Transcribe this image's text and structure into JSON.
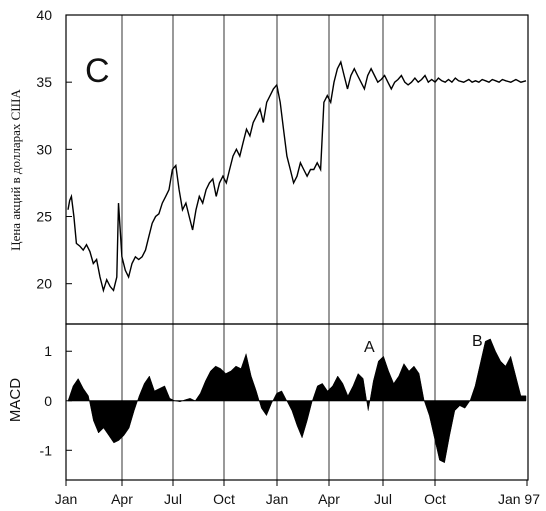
{
  "chart_data": [
    {
      "type": "line",
      "panel_label": "C",
      "ylabel": "Цена акций в долларах США",
      "ylim": [
        17,
        40
      ],
      "yticks": [
        "20",
        "25",
        "30",
        "35",
        "40"
      ],
      "x_start": "Jan",
      "x_end": "Jan 97",
      "series": [
        {
          "x": [
            0,
            0.1,
            0.2,
            0.35,
            0.5,
            0.7,
            0.9,
            1.1,
            1.3,
            1.5,
            1.7,
            1.9,
            2.1,
            2.3,
            2.5,
            2.7,
            2.9,
            3.0,
            3.2,
            3.4,
            3.6,
            3.8,
            4.0,
            4.2,
            4.4,
            4.6,
            4.8,
            5.0,
            5.2,
            5.4,
            5.6,
            5.8,
            6.0,
            6.2,
            6.4,
            6.6,
            6.8,
            7.0,
            7.2,
            7.4,
            7.6,
            7.8,
            8.0,
            8.2,
            8.4,
            8.6,
            8.8,
            9.0,
            9.2,
            9.4,
            9.6,
            9.8,
            10.0,
            10.2,
            10.4,
            10.6,
            10.8,
            11.0,
            11.2,
            11.4,
            11.6,
            11.8,
            12.0,
            12.2,
            12.4,
            12.6,
            12.8,
            13.0,
            13.2,
            13.4,
            13.6,
            13.8,
            14.0,
            14.2,
            14.4,
            14.6,
            14.8,
            15.0,
            15.2,
            15.4,
            15.6,
            15.8,
            16.0,
            16.2,
            16.4,
            16.6,
            16.8,
            17.0,
            17.2,
            17.4,
            17.6,
            17.8,
            18.0,
            18.2,
            18.4,
            18.6,
            18.8,
            19.0,
            19.2,
            19.4,
            19.6,
            19.8,
            20.0,
            20.2,
            20.4,
            20.6,
            20.8,
            21.0,
            21.2,
            21.4,
            21.6,
            21.8,
            22.0,
            22.2,
            22.4,
            22.6,
            22.8,
            23.0,
            23.2,
            23.5,
            23.8,
            24.0,
            24.2,
            24.4,
            24.6,
            24.8,
            25.0,
            25.2,
            25.4,
            25.6,
            25.8,
            26.0,
            26.3,
            26.6,
            26.9,
            27.2
          ],
          "values": [
            25.5,
            26.2,
            26.5,
            25.0,
            23.0,
            22.8,
            22.5,
            22.9,
            22.4,
            21.5,
            21.8,
            20.5,
            19.5,
            20.3,
            19.8,
            19.5,
            20.5,
            26.0,
            22.0,
            21.0,
            20.5,
            21.5,
            22.0,
            21.8,
            22.0,
            22.5,
            23.5,
            24.5,
            25.0,
            25.2,
            26.0,
            26.5,
            27.0,
            28.5,
            28.8,
            27.0,
            25.5,
            26.0,
            25.0,
            24.0,
            25.5,
            26.5,
            26.0,
            27.0,
            27.5,
            27.8,
            26.5,
            27.5,
            28.0,
            27.5,
            28.5,
            29.5,
            30.0,
            29.5,
            30.5,
            31.5,
            31.0,
            32.0,
            32.5,
            33.0,
            32.0,
            33.5,
            34.0,
            34.5,
            34.8,
            33.5,
            31.5,
            29.5,
            28.5,
            27.5,
            28.0,
            29.0,
            28.5,
            28.0,
            28.5,
            28.5,
            29.0,
            28.5,
            33.5,
            34.0,
            33.5,
            35.0,
            36.0,
            36.5,
            35.5,
            34.5,
            35.5,
            36.0,
            35.5,
            35.0,
            34.5,
            35.5,
            36.0,
            35.5,
            35.0,
            35.2,
            35.5,
            35.0,
            34.5,
            35.0,
            35.2,
            35.5,
            35.0,
            34.8,
            35.0,
            35.3,
            35.0,
            35.2,
            35.5,
            35.0,
            35.2,
            35.0,
            35.3,
            35.1,
            35.0,
            35.2,
            35.0,
            35.3,
            35.1,
            35.0,
            35.2,
            35.0,
            35.1,
            35.0,
            35.2,
            35.1,
            35.0,
            35.2,
            35.1,
            35.0,
            35.2,
            35.1,
            35.0,
            35.2,
            35.0,
            35.1
          ]
        }
      ]
    },
    {
      "type": "area",
      "ylabel": "MACD",
      "ylim": [
        -1.6,
        1.55
      ],
      "yticks": [
        "-1",
        "0",
        "1"
      ],
      "categories": [
        "Jan",
        "Apr",
        "Jul",
        "Oct",
        "Jan",
        "Apr",
        "Jul",
        "Oct",
        "Jan 97"
      ],
      "annotations": [
        "A",
        "B"
      ],
      "series": [
        {
          "x": [
            0,
            0.1,
            0.2,
            0.3,
            0.4,
            0.5,
            0.6,
            0.7,
            0.8,
            0.9,
            1.0,
            1.1,
            1.2,
            1.3,
            1.4,
            1.5,
            1.6,
            1.7,
            1.8,
            1.9,
            2.0,
            2.1,
            2.2,
            2.3,
            2.4,
            2.5,
            2.6,
            2.7,
            2.8,
            2.9,
            3.0,
            3.1,
            3.2,
            3.3,
            3.4,
            3.5,
            3.6,
            3.7,
            3.8,
            3.9,
            4.0,
            4.1,
            4.2,
            4.3,
            4.4,
            4.5,
            4.6,
            4.7,
            4.8,
            4.9,
            5.0,
            5.1,
            5.2,
            5.3,
            5.4,
            5.5,
            5.6,
            5.7,
            5.8,
            5.9,
            6.0,
            6.1,
            6.2,
            6.3,
            6.4,
            6.5,
            6.6,
            6.7,
            6.8,
            6.9,
            7.0,
            7.1,
            7.2,
            7.3,
            7.4,
            7.5,
            7.6,
            7.7,
            7.8,
            7.9,
            8.0,
            8.1,
            8.2,
            8.3,
            8.4,
            8.5,
            8.6,
            8.7,
            8.8,
            8.9,
            9.0
          ],
          "values": [
            0,
            0.3,
            0.45,
            0.25,
            0.1,
            -0.4,
            -0.65,
            -0.55,
            -0.7,
            -0.85,
            -0.8,
            -0.7,
            -0.55,
            -0.2,
            0.1,
            0.35,
            0.5,
            0.2,
            0.25,
            0.3,
            0.05,
            0,
            -0.02,
            0.02,
            0.05,
            0.0,
            0.15,
            0.4,
            0.6,
            0.7,
            0.65,
            0.55,
            0.6,
            0.7,
            0.65,
            0.95,
            0.5,
            0.2,
            -0.15,
            -0.3,
            -0.05,
            0.15,
            0.2,
            0.0,
            -0.2,
            -0.5,
            -0.75,
            -0.4,
            0.0,
            0.3,
            0.35,
            0.2,
            0.3,
            0.5,
            0.35,
            0.1,
            0.3,
            0.55,
            0.45,
            -0.2,
            0.4,
            0.8,
            0.9,
            0.6,
            0.35,
            0.5,
            0.75,
            0.6,
            0.7,
            0.55,
            0.0,
            -0.3,
            -0.75,
            -1.2,
            -1.25,
            -0.7,
            -0.2,
            -0.1,
            -0.15,
            0.0,
            0.3,
            0.75,
            1.2,
            1.25,
            1.0,
            0.8,
            0.7,
            0.9,
            0.5,
            0.1,
            0.1
          ]
        }
      ]
    }
  ]
}
